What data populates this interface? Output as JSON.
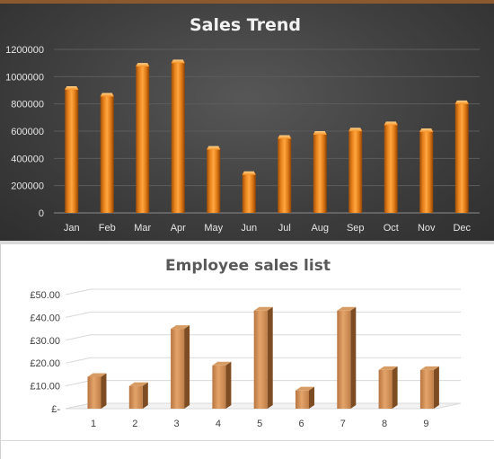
{
  "chart_data": [
    {
      "type": "bar",
      "title": "Sales Trend",
      "categories": [
        "Jan",
        "Feb",
        "Mar",
        "Apr",
        "May",
        "Jun",
        "Jul",
        "Aug",
        "Sep",
        "Oct",
        "Nov",
        "Dec"
      ],
      "values": [
        930000,
        880000,
        1100000,
        1125000,
        490000,
        305000,
        570000,
        600000,
        625000,
        670000,
        620000,
        825000
      ],
      "ylim": [
        0,
        1200000
      ],
      "yticks": [
        "0",
        "200000",
        "400000",
        "600000",
        "800000",
        "1000000",
        "1200000"
      ],
      "grid": true,
      "colors": {
        "bar": "#e8821c",
        "bar_light": "#ffb45a",
        "bar_dark": "#9c4b06",
        "background": "#3d3d3d"
      }
    },
    {
      "type": "bar",
      "title": "Employee sales list",
      "categories": [
        "1",
        "2",
        "3",
        "4",
        "5",
        "6",
        "7",
        "8",
        "9"
      ],
      "values": [
        14,
        10,
        35,
        19,
        43,
        8,
        43,
        17,
        17
      ],
      "ylim": [
        0,
        50
      ],
      "yticks": [
        "£-",
        "£10.00",
        "£20.00",
        "£30.00",
        "£40.00",
        "£50.00"
      ],
      "grid": true,
      "style": "3d",
      "colors": {
        "bar": "#c8864f",
        "bar_light": "#e8a86a",
        "bar_dark": "#7a4a22",
        "bar_top": "#dca06a"
      }
    }
  ]
}
